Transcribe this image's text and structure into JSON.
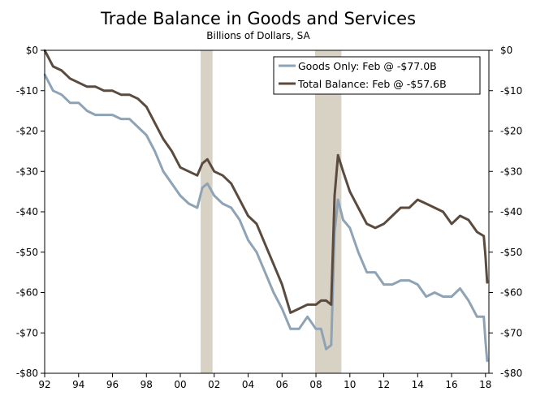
{
  "chart_data": {
    "type": "line",
    "title": "Trade Balance in Goods and Services",
    "subtitle": "Billions of Dollars, SA",
    "xlabel": "",
    "ylabel": "",
    "xlim": [
      1992.0,
      2018.2
    ],
    "ylim": [
      -80,
      0
    ],
    "x_ticks": [
      1992,
      1994,
      1996,
      1998,
      2000,
      2002,
      2004,
      2006,
      2008,
      2010,
      2012,
      2014,
      2016,
      2018
    ],
    "x_tick_labels": [
      "92",
      "94",
      "96",
      "98",
      "00",
      "02",
      "04",
      "06",
      "08",
      "10",
      "12",
      "14",
      "16",
      "18"
    ],
    "y_ticks": [
      0,
      -10,
      -20,
      -30,
      -40,
      -50,
      -60,
      -70,
      -80
    ],
    "y_tick_labels": [
      "$0",
      "-$10",
      "-$20",
      "-$30",
      "-$40",
      "-$50",
      "-$60",
      "-$70",
      "-$80"
    ],
    "grid": false,
    "legend_position": "top-right",
    "recession_bands": [
      [
        2001.2,
        2001.9
      ],
      [
        2007.95,
        2009.5
      ]
    ],
    "colors": {
      "goods": "#8ea3b5",
      "total": "#5b4b3e",
      "band": "#d8d2c4",
      "axis": "#000000"
    },
    "series": [
      {
        "name": "Goods Only: Feb @ -$77.0B",
        "x": [
          1992.0,
          1992.5,
          1993.0,
          1993.5,
          1994.0,
          1994.5,
          1995.0,
          1995.5,
          1996.0,
          1996.5,
          1997.0,
          1997.5,
          1998.0,
          1998.5,
          1999.0,
          1999.5,
          2000.0,
          2000.5,
          2001.0,
          2001.3,
          2001.6,
          2002.0,
          2002.5,
          2003.0,
          2003.5,
          2004.0,
          2004.5,
          2005.0,
          2005.5,
          2006.0,
          2006.5,
          2007.0,
          2007.5,
          2008.0,
          2008.3,
          2008.6,
          2008.9,
          2009.1,
          2009.3,
          2009.6,
          2010.0,
          2010.5,
          2011.0,
          2011.5,
          2012.0,
          2012.5,
          2013.0,
          2013.5,
          2014.0,
          2014.5,
          2015.0,
          2015.5,
          2016.0,
          2016.5,
          2017.0,
          2017.5,
          2017.9,
          2018.0,
          2018.1
        ],
        "values": [
          -6,
          -10,
          -11,
          -13,
          -13,
          -15,
          -16,
          -16,
          -16,
          -17,
          -17,
          -19,
          -21,
          -25,
          -30,
          -33,
          -36,
          -38,
          -39,
          -34,
          -33,
          -36,
          -38,
          -39,
          -42,
          -47,
          -50,
          -55,
          -60,
          -64,
          -69,
          -69,
          -66,
          -69,
          -69,
          -74,
          -73,
          -45,
          -37,
          -42,
          -44,
          -50,
          -55,
          -55,
          -58,
          -58,
          -57,
          -57,
          -58,
          -61,
          -60,
          -61,
          -61,
          -59,
          -62,
          -66,
          -66,
          -72,
          -77
        ]
      },
      {
        "name": "Total Balance: Feb @ -$57.6B",
        "x": [
          1992.0,
          1992.5,
          1993.0,
          1993.5,
          1994.0,
          1994.5,
          1995.0,
          1995.5,
          1996.0,
          1996.5,
          1997.0,
          1997.5,
          1998.0,
          1998.5,
          1999.0,
          1999.5,
          2000.0,
          2000.5,
          2001.0,
          2001.3,
          2001.6,
          2002.0,
          2002.5,
          2003.0,
          2003.5,
          2004.0,
          2004.5,
          2005.0,
          2005.5,
          2006.0,
          2006.5,
          2007.0,
          2007.5,
          2008.0,
          2008.3,
          2008.6,
          2008.9,
          2009.1,
          2009.3,
          2009.6,
          2010.0,
          2010.5,
          2011.0,
          2011.5,
          2012.0,
          2012.5,
          2013.0,
          2013.5,
          2014.0,
          2014.5,
          2015.0,
          2015.5,
          2016.0,
          2016.5,
          2017.0,
          2017.5,
          2017.9,
          2018.0,
          2018.1
        ],
        "values": [
          0,
          -4,
          -5,
          -7,
          -8,
          -9,
          -9,
          -10,
          -10,
          -11,
          -11,
          -12,
          -14,
          -18,
          -22,
          -25,
          -29,
          -30,
          -31,
          -28,
          -27,
          -30,
          -31,
          -33,
          -37,
          -41,
          -43,
          -48,
          -53,
          -58,
          -65,
          -64,
          -63,
          -63,
          -62,
          -62,
          -63,
          -36,
          -26,
          -30,
          -35,
          -39,
          -43,
          -44,
          -43,
          -41,
          -39,
          -39,
          -37,
          -38,
          -39,
          -40,
          -43,
          -41,
          -42,
          -45,
          -46,
          -51,
          -57.6
        ]
      }
    ]
  }
}
